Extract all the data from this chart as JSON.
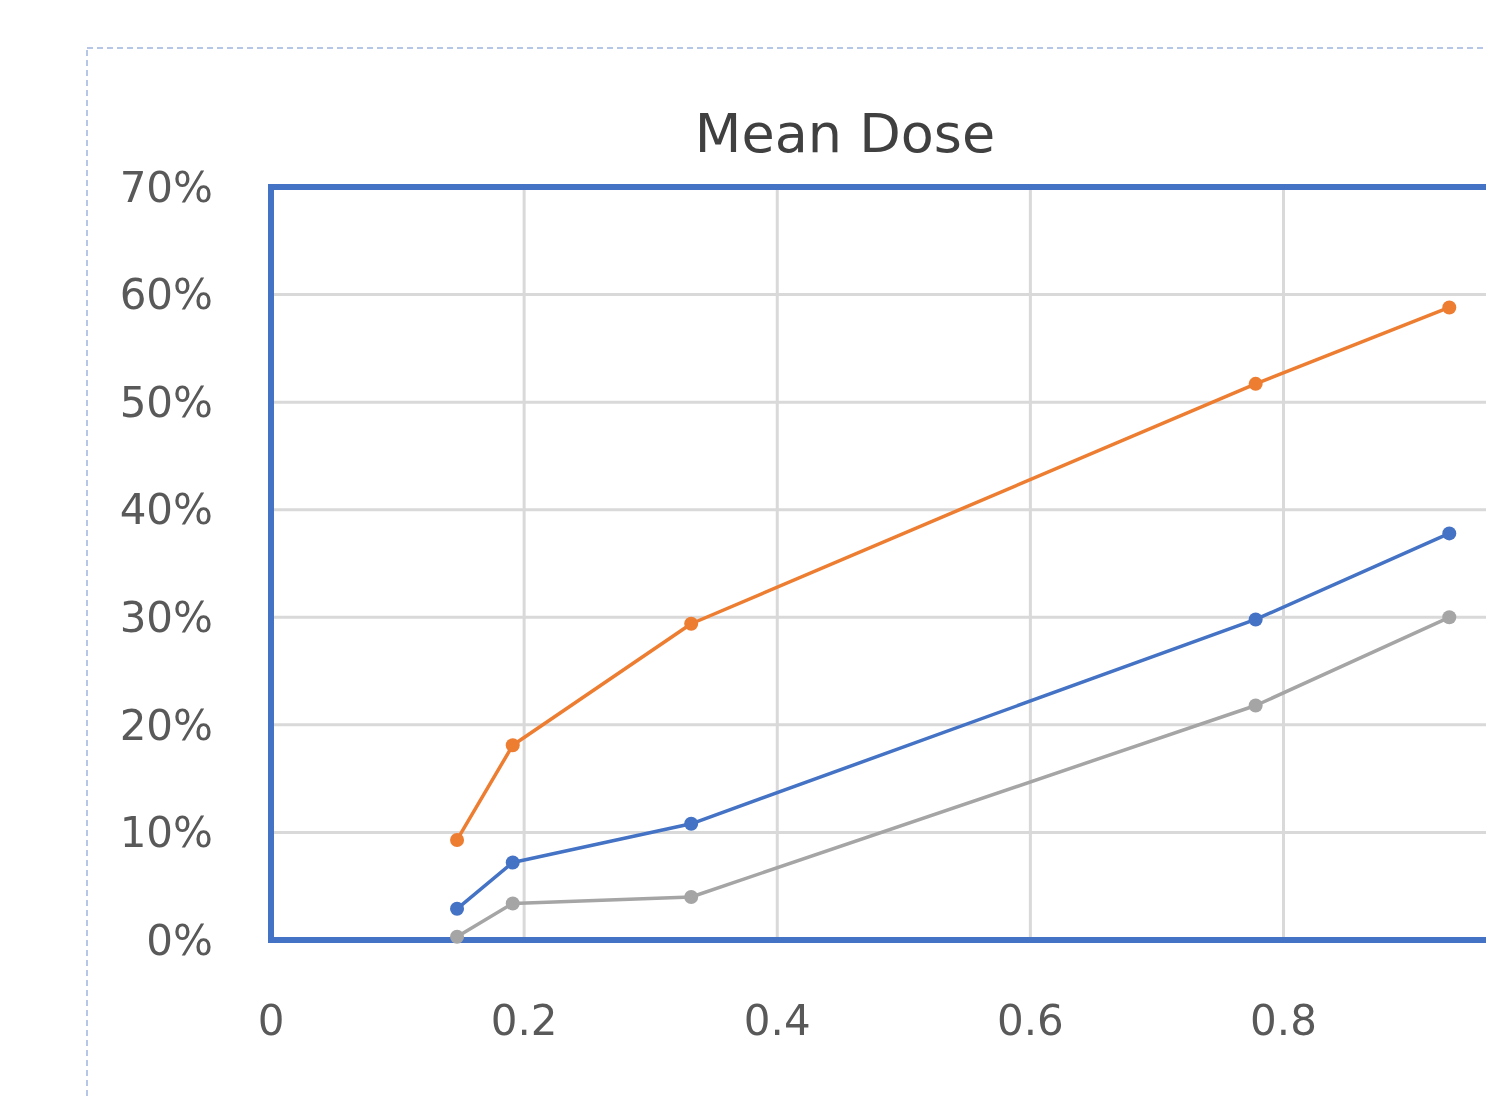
{
  "chart_data": {
    "type": "line",
    "title": "Mean Dose",
    "x": [
      0.147,
      0.191,
      0.332,
      0.778,
      0.931
    ],
    "series": [
      {
        "color": "#ed7d31",
        "values": [
          9.3,
          18.1,
          29.4,
          51.7,
          58.8
        ]
      },
      {
        "color": "#4472c4",
        "values": [
          2.9,
          7.2,
          10.8,
          29.8,
          37.8
        ]
      },
      {
        "color": "#a5a5a5",
        "values": [
          0.3,
          3.4,
          4.0,
          21.8,
          30.0
        ]
      }
    ],
    "xlim": [
      0,
      0.96
    ],
    "xticks": [
      0,
      0.2,
      0.4,
      0.6,
      0.8
    ],
    "ylim": [
      0,
      70
    ],
    "yticks": [
      {
        "value": 0,
        "label": "0%"
      },
      {
        "value": 10,
        "label": "10%"
      },
      {
        "value": 20,
        "label": "20%"
      },
      {
        "value": 30,
        "label": "30%"
      },
      {
        "value": 40,
        "label": "40%"
      },
      {
        "value": 50,
        "label": "50%"
      },
      {
        "value": 60,
        "label": "60%"
      },
      {
        "value": 70,
        "label": "70%"
      }
    ],
    "grid": true,
    "marker": "circle",
    "line_style": "solid"
  }
}
